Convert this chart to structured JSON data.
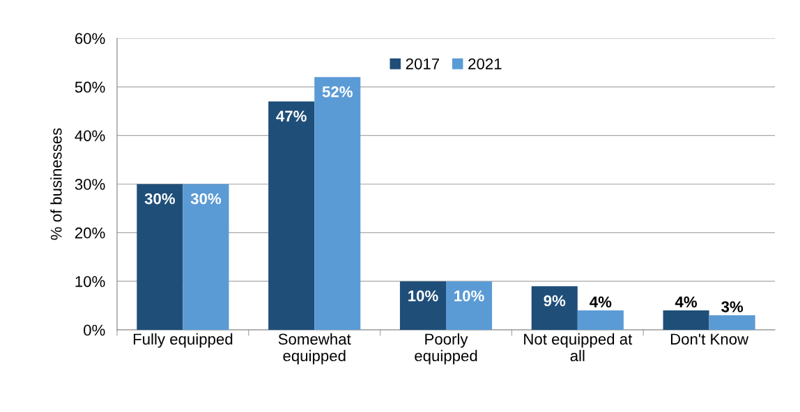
{
  "chart_data": {
    "type": "bar",
    "ylabel": "% of businesses",
    "categories": [
      "Fully equipped",
      "Somewhat\nequipped",
      "Poorly\nequipped",
      "Not equipped at\nall",
      "Don't Know"
    ],
    "series": [
      {
        "name": "2017",
        "color": "#1f4e79",
        "values": [
          30,
          47,
          10,
          9,
          4
        ],
        "value_labels": [
          "30%",
          "47%",
          "10%",
          "9%",
          "4%"
        ]
      },
      {
        "name": "2021",
        "color": "#5b9bd5",
        "values": [
          30,
          52,
          10,
          4,
          3
        ],
        "value_labels": [
          "30%",
          "52%",
          "10%",
          "4%",
          "3%"
        ]
      }
    ],
    "ylim": [
      0,
      60
    ],
    "yticks": [
      {
        "value": 0,
        "label": "0%"
      },
      {
        "value": 10,
        "label": "10%"
      },
      {
        "value": 20,
        "label": "20%"
      },
      {
        "value": 30,
        "label": "30%"
      },
      {
        "value": 40,
        "label": "40%"
      },
      {
        "value": 50,
        "label": "50%"
      },
      {
        "value": 60,
        "label": "60%"
      }
    ],
    "grid": "y",
    "legend": "top"
  }
}
